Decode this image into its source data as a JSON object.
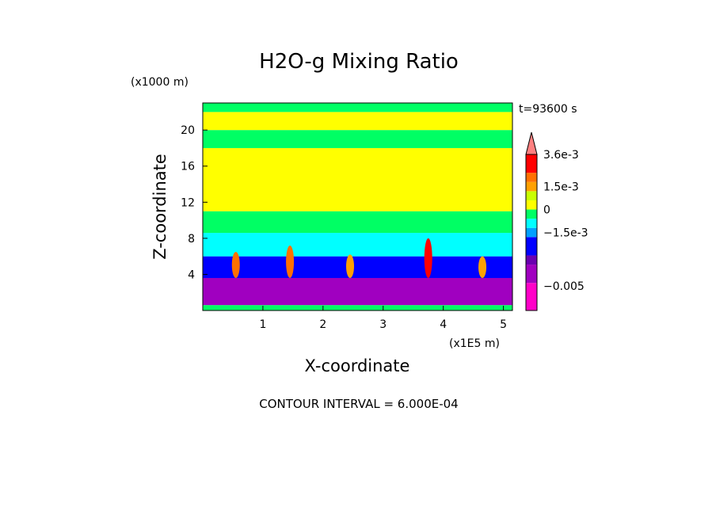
{
  "chart_data": {
    "type": "heatmap",
    "title": "H2O-g Mixing Ratio",
    "xlabel": "X-coordinate",
    "ylabel": "Z-coordinate",
    "x_unit": "(x1E5 m)",
    "y_unit": "(x1000 m)",
    "time_label": "t=93600 s",
    "contour_interval_label": "CONTOUR INTERVAL = 6.000E-04",
    "xlim": [
      0,
      5.15
    ],
    "ylim": [
      0,
      23
    ],
    "x_ticks": [
      1,
      2,
      3,
      4,
      5
    ],
    "y_ticks": [
      4,
      8,
      12,
      16,
      20
    ],
    "colorbar": {
      "labels": [
        {
          "text": "3.6e-3",
          "value": 0.0036
        },
        {
          "text": "1.5e-3",
          "value": 0.0015
        },
        {
          "text": "0",
          "value": 0
        },
        {
          "text": "−1.5e-3",
          "value": -0.0015
        },
        {
          "text": "−0.005",
          "value": -0.005
        }
      ],
      "levels": [
        {
          "from": -0.0066,
          "to": -0.0048,
          "color": "#ff00c8"
        },
        {
          "from": -0.0048,
          "to": -0.0036,
          "color": "#a000c0"
        },
        {
          "from": -0.0036,
          "to": -0.003,
          "color": "#6a00b0"
        },
        {
          "from": -0.003,
          "to": -0.0018,
          "color": "#0000ff"
        },
        {
          "from": -0.0018,
          "to": -0.0012,
          "color": "#00a0ff"
        },
        {
          "from": -0.0012,
          "to": -0.0006,
          "color": "#00ffff"
        },
        {
          "from": -0.0006,
          "to": 0.0,
          "color": "#00ff64"
        },
        {
          "from": 0.0,
          "to": 0.0006,
          "color": "#ffff00"
        },
        {
          "from": 0.0006,
          "to": 0.0012,
          "color": "#c8ff00"
        },
        {
          "from": 0.0012,
          "to": 0.0018,
          "color": "#ffa000"
        },
        {
          "from": 0.0018,
          "to": 0.0024,
          "color": "#ff7000"
        },
        {
          "from": 0.0024,
          "to": 0.0036,
          "color": "#ff0000"
        },
        {
          "from": 0.0036,
          "to": 0.0042,
          "color": "#ff8080"
        }
      ]
    },
    "bands": [
      {
        "z_from": 0,
        "z_to": 0.6,
        "color": "#00ff64"
      },
      {
        "z_from": 0.6,
        "z_to": 3.6,
        "color": "#a000c0"
      },
      {
        "z_from": 3.6,
        "z_to": 6,
        "color": "#0000ff"
      },
      {
        "z_from": 6,
        "z_to": 8.6,
        "color": "#00ffff"
      },
      {
        "z_from": 8.6,
        "z_to": 11,
        "color": "#00ff64"
      },
      {
        "z_from": 11,
        "z_to": 18,
        "color": "#ffff00"
      },
      {
        "z_from": 18,
        "z_to": 20,
        "color": "#00ff64"
      },
      {
        "z_from": 20,
        "z_to": 22,
        "color": "#ffff00"
      },
      {
        "z_from": 22,
        "z_to": 23,
        "color": "#00ff64"
      }
    ],
    "plumes": [
      {
        "x": 0.55,
        "z_top": 6.5,
        "color": "#ff7000"
      },
      {
        "x": 1.45,
        "z_top": 7.2,
        "color": "#ff7000"
      },
      {
        "x": 2.45,
        "z_top": 6.2,
        "color": "#ffa000"
      },
      {
        "x": 3.75,
        "z_top": 8.0,
        "color": "#ff0000"
      },
      {
        "x": 4.65,
        "z_top": 6.0,
        "color": "#ffa000"
      }
    ]
  }
}
